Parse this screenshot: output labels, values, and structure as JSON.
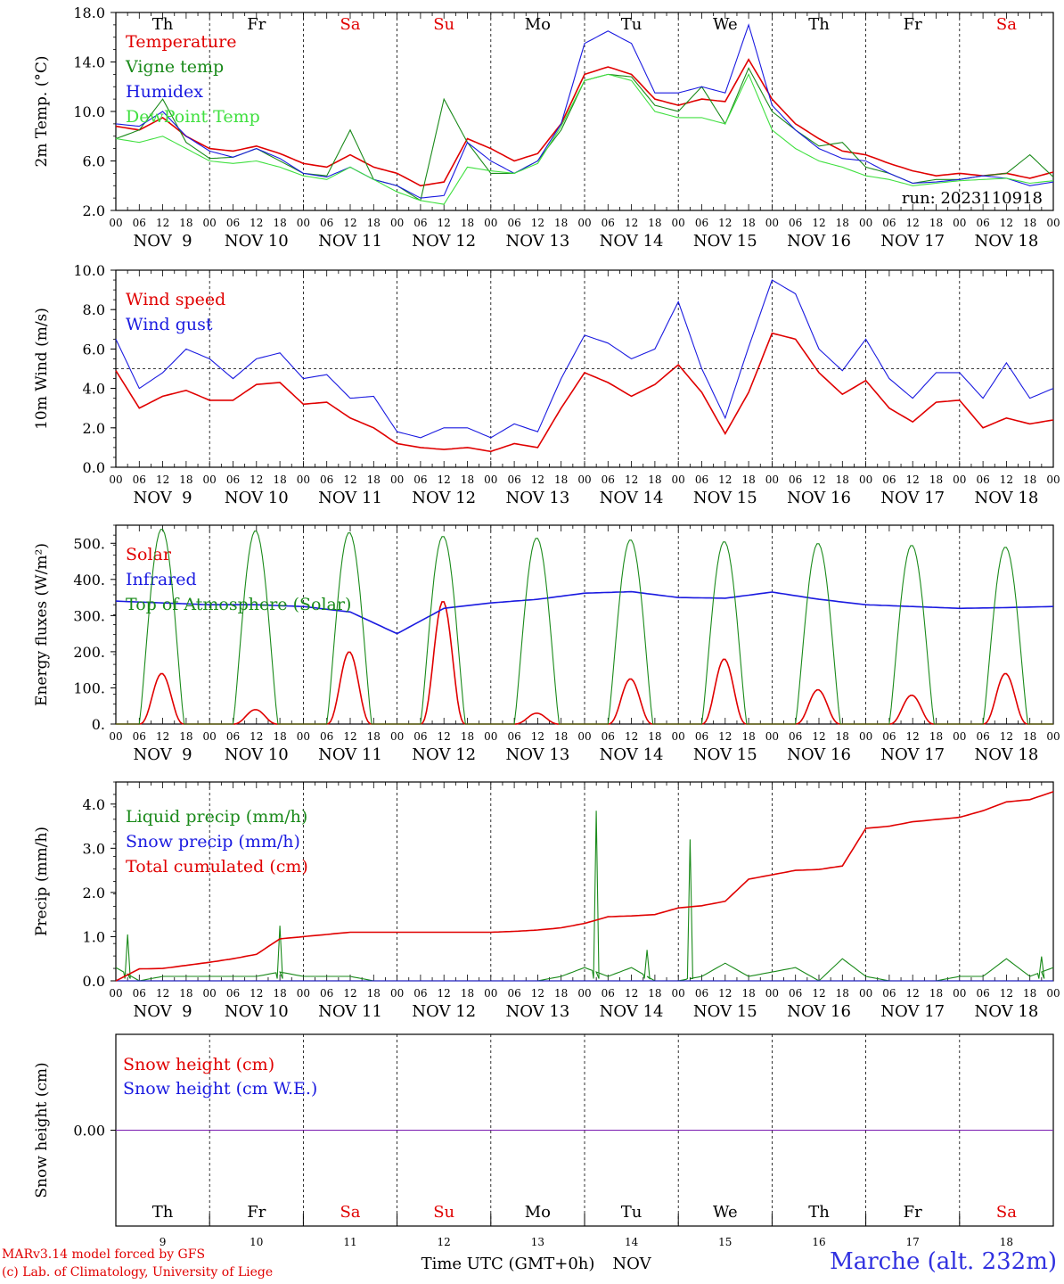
{
  "colors": {
    "red": "#e00000",
    "green": "#1a8a1a",
    "blue": "#1a1ae0",
    "lightgreen": "#40e040",
    "purple": "#7a1ab0",
    "axis": "#000000",
    "day_red": "#e00000"
  },
  "footer": {
    "credit_line1": "MARv3.14 model forced by GFS",
    "credit_line2": "(c) Lab. of Climatology, University of Liege",
    "location": "Marche (alt. 232m)"
  },
  "chart_data": [
    {
      "type": "line",
      "ylabel": "2m Temp. (°C)",
      "ylim": [
        2,
        18
      ],
      "yticks": [
        "2.0",
        "6.0",
        "10.0",
        "14.0",
        "18.0"
      ],
      "day_labels": [
        "Th",
        "Fr",
        "Sa",
        "Su",
        "Mo",
        "Tu",
        "We",
        "Th",
        "Fr",
        "Sa"
      ],
      "date_labels": [
        "NOV  9",
        "NOV 10",
        "NOV 11",
        "NOV 12",
        "NOV 13",
        "NOV 14",
        "NOV 15",
        "NOV 16",
        "NOV 17",
        "NOV 18"
      ],
      "hour_ticks": [
        "00",
        "06",
        "12",
        "18"
      ],
      "annotation": "run: 2023110918",
      "x_hours": [
        0,
        6,
        12,
        18,
        24,
        30,
        36,
        42,
        48,
        54,
        60,
        66,
        72,
        78,
        84,
        90,
        96,
        102,
        108,
        114,
        120,
        126,
        132,
        138,
        144,
        150,
        156,
        162,
        168,
        174,
        180,
        186,
        192,
        198,
        204,
        210,
        216,
        222,
        228,
        234,
        240
      ],
      "series": [
        {
          "name": "Temperature",
          "color": "red",
          "values": [
            8.8,
            8.5,
            9.5,
            8.0,
            7.0,
            6.8,
            7.2,
            6.6,
            5.8,
            5.5,
            6.5,
            5.5,
            5.0,
            4.0,
            4.3,
            7.8,
            7.0,
            6.0,
            6.6,
            9.0,
            13.0,
            13.6,
            13.0,
            11.0,
            10.5,
            11.0,
            10.8,
            14.2,
            11.0,
            9.0,
            7.8,
            6.8,
            6.5,
            5.8,
            5.2,
            4.8,
            5.0,
            4.8,
            5.0,
            4.6,
            5.1
          ]
        },
        {
          "name": "Vigne temp",
          "color": "green",
          "values": [
            7.8,
            8.5,
            11.0,
            7.5,
            6.2,
            6.3,
            7.0,
            6.0,
            5.0,
            4.8,
            8.5,
            4.5,
            4.0,
            2.8,
            11.0,
            7.5,
            5.0,
            5.0,
            6.0,
            8.5,
            12.5,
            13.0,
            12.8,
            10.5,
            10.0,
            12.0,
            9.0,
            13.5,
            10.0,
            8.5,
            7.2,
            7.5,
            5.5,
            5.0,
            4.2,
            4.5,
            4.5,
            4.8,
            5.0,
            6.5,
            4.7
          ]
        },
        {
          "name": "Humidex",
          "color": "blue",
          "values": [
            9.0,
            8.8,
            10.0,
            8.0,
            6.8,
            6.3,
            7.0,
            6.2,
            5.0,
            4.7,
            5.5,
            4.5,
            4.0,
            3.0,
            3.2,
            7.5,
            6.0,
            5.0,
            6.0,
            9.0,
            15.5,
            16.5,
            15.5,
            11.5,
            11.5,
            12.0,
            11.5,
            17.0,
            10.5,
            8.5,
            7.0,
            6.2,
            6.0,
            5.0,
            4.2,
            4.3,
            4.5,
            4.8,
            4.6,
            4.0,
            4.3
          ]
        },
        {
          "name": "DewPoint Temp",
          "color": "lightgreen",
          "values": [
            7.8,
            7.5,
            8.0,
            7.0,
            6.0,
            5.8,
            6.0,
            5.5,
            4.8,
            4.5,
            5.5,
            4.5,
            3.5,
            2.8,
            2.5,
            5.5,
            5.2,
            5.0,
            5.8,
            8.8,
            12.5,
            13.0,
            12.5,
            10.0,
            9.5,
            9.5,
            9.0,
            13.0,
            8.5,
            7.0,
            6.0,
            5.5,
            4.8,
            4.5,
            4.0,
            4.2,
            4.4,
            4.5,
            4.6,
            4.2,
            4.4
          ]
        }
      ]
    },
    {
      "type": "line",
      "ylabel": "10m Wind (m/s)",
      "ylim": [
        0,
        10
      ],
      "yticks": [
        "0.0",
        "2.0",
        "4.0",
        "6.0",
        "8.0",
        "10.0"
      ],
      "reference_line": 5,
      "date_labels": [
        "NOV  9",
        "NOV 10",
        "NOV 11",
        "NOV 12",
        "NOV 13",
        "NOV 14",
        "NOV 15",
        "NOV 16",
        "NOV 17",
        "NOV 18"
      ],
      "hour_ticks": [
        "00",
        "06",
        "12",
        "18"
      ],
      "x_hours": [
        0,
        6,
        12,
        18,
        24,
        30,
        36,
        42,
        48,
        54,
        60,
        66,
        72,
        78,
        84,
        90,
        96,
        102,
        108,
        114,
        120,
        126,
        132,
        138,
        144,
        150,
        156,
        162,
        168,
        174,
        180,
        186,
        192,
        198,
        204,
        210,
        216,
        222,
        228,
        234,
        240
      ],
      "series": [
        {
          "name": "Wind speed",
          "color": "red",
          "values": [
            4.9,
            3.0,
            3.6,
            3.9,
            3.4,
            3.4,
            4.2,
            4.3,
            3.2,
            3.3,
            2.5,
            2.0,
            1.2,
            1.0,
            0.9,
            1.0,
            0.8,
            1.2,
            1.0,
            3.0,
            4.8,
            4.3,
            3.6,
            4.2,
            5.2,
            3.8,
            1.7,
            3.8,
            6.8,
            6.5,
            4.8,
            3.7,
            4.4,
            3.0,
            2.3,
            3.3,
            3.4,
            2.0,
            2.5,
            2.2,
            2.4
          ]
        },
        {
          "name": "Wind gust",
          "color": "blue",
          "values": [
            6.5,
            4.0,
            4.8,
            6.0,
            5.5,
            4.5,
            5.5,
            5.8,
            4.5,
            4.7,
            3.5,
            3.6,
            1.8,
            1.5,
            2.0,
            2.0,
            1.5,
            2.2,
            1.8,
            4.5,
            6.7,
            6.3,
            5.5,
            6.0,
            8.4,
            5.0,
            2.5,
            6.1,
            9.5,
            8.8,
            6.0,
            4.9,
            6.5,
            4.5,
            3.5,
            4.8,
            4.8,
            3.5,
            5.3,
            3.5,
            4.0
          ]
        }
      ]
    },
    {
      "type": "line",
      "ylabel": "Energy fluxes (W/m²)",
      "ylim": [
        0,
        550
      ],
      "yticks": [
        "0.",
        "100.",
        "200.",
        "300.",
        "400.",
        "500."
      ],
      "date_labels": [
        "NOV  9",
        "NOV 10",
        "NOV 11",
        "NOV 12",
        "NOV 13",
        "NOV 14",
        "NOV 15",
        "NOV 16",
        "NOV 17",
        "NOV 18"
      ],
      "hour_ticks": [
        "00",
        "06",
        "12",
        "18"
      ],
      "series": [
        {
          "name": "Solar",
          "color": "red",
          "daily_peaks": [
            140,
            40,
            200,
            340,
            30,
            125,
            180,
            95,
            80,
            140
          ]
        },
        {
          "name": "Infrared",
          "color": "blue",
          "x_hours": [
            0,
            12,
            24,
            36,
            48,
            60,
            72,
            84,
            96,
            108,
            120,
            132,
            144,
            156,
            168,
            180,
            192,
            204,
            216,
            228,
            240
          ],
          "values": [
            340,
            335,
            330,
            330,
            325,
            310,
            250,
            320,
            335,
            345,
            362,
            366,
            350,
            348,
            365,
            345,
            330,
            325,
            320,
            322,
            325
          ]
        },
        {
          "name": "Top of Atmosphere (Solar)",
          "color": "green",
          "daily_peaks": [
            540,
            535,
            530,
            520,
            515,
            510,
            505,
            500,
            495,
            490
          ]
        }
      ]
    },
    {
      "type": "line",
      "ylabel": "Precip (mm/h)",
      "ylim": [
        0,
        4.5
      ],
      "yticks": [
        "0.0",
        "1.0",
        "2.0",
        "3.0",
        "4.0"
      ],
      "date_labels": [
        "NOV  9",
        "NOV 10",
        "NOV 11",
        "NOV 12",
        "NOV 13",
        "NOV 14",
        "NOV 15",
        "NOV 16",
        "NOV 17",
        "NOV 18"
      ],
      "hour_ticks": [
        "00",
        "06",
        "12",
        "18"
      ],
      "x_hours": [
        0,
        6,
        12,
        18,
        24,
        30,
        36,
        42,
        48,
        54,
        60,
        66,
        72,
        78,
        84,
        90,
        96,
        102,
        108,
        114,
        120,
        126,
        132,
        138,
        144,
        150,
        156,
        162,
        168,
        174,
        180,
        186,
        192,
        198,
        204,
        210,
        216,
        222,
        228,
        234,
        240
      ],
      "series": [
        {
          "name": "Liquid precip (mm/h)",
          "color": "green",
          "values": [
            0.3,
            0.0,
            0.1,
            0.1,
            0.1,
            0.1,
            0.1,
            0.2,
            0.1,
            0.1,
            0.1,
            0.0,
            0.0,
            0.0,
            0.0,
            0.0,
            0.0,
            0.0,
            0.0,
            0.1,
            0.3,
            0.1,
            0.3,
            0.0,
            0.0,
            0.1,
            0.4,
            0.1,
            0.2,
            0.3,
            0.0,
            0.5,
            0.1,
            0.0,
            0.0,
            0.0,
            0.1,
            0.1,
            0.5,
            0.1,
            0.3
          ]
        },
        {
          "name": "Snow precip (mm/h)",
          "color": "blue",
          "values": [
            0,
            0,
            0,
            0,
            0,
            0,
            0,
            0,
            0,
            0,
            0,
            0,
            0,
            0,
            0,
            0,
            0,
            0,
            0,
            0,
            0,
            0,
            0,
            0,
            0,
            0,
            0,
            0,
            0,
            0,
            0,
            0,
            0,
            0,
            0,
            0,
            0,
            0,
            0,
            0,
            0
          ]
        },
        {
          "name": "Total cumulated (cm)",
          "color": "red",
          "values": [
            0.0,
            0.27,
            0.28,
            0.35,
            0.42,
            0.5,
            0.6,
            0.95,
            1.0,
            1.05,
            1.1,
            1.1,
            1.1,
            1.1,
            1.1,
            1.1,
            1.1,
            1.12,
            1.15,
            1.2,
            1.3,
            1.45,
            1.47,
            1.5,
            1.65,
            1.7,
            1.8,
            2.3,
            2.4,
            2.5,
            2.52,
            2.6,
            3.45,
            3.5,
            3.6,
            3.65,
            3.7,
            3.85,
            4.05,
            4.1,
            4.28
          ]
        }
      ],
      "spikes": [
        {
          "hour": 3,
          "value": 1.05
        },
        {
          "hour": 42,
          "value": 1.25
        },
        {
          "hour": 123,
          "value": 3.85
        },
        {
          "hour": 136,
          "value": 0.7
        },
        {
          "hour": 147,
          "value": 3.2
        },
        {
          "hour": 237,
          "value": 0.55
        }
      ]
    },
    {
      "type": "line",
      "ylabel": "Snow height (cm)",
      "ylim": [
        -1,
        1
      ],
      "yticks": [
        "0.00"
      ],
      "day_labels": [
        "Th",
        "Fr",
        "Sa",
        "Su",
        "Mo",
        "Tu",
        "We",
        "Th",
        "Fr",
        "Sa"
      ],
      "day_numbers": [
        "9",
        "10",
        "11",
        "12",
        "13",
        "14",
        "15",
        "16",
        "17",
        "18"
      ],
      "xlabel": "Time UTC (GMT+0h)",
      "month_label": "NOV",
      "series": [
        {
          "name": "Snow height (cm)",
          "color": "red",
          "values": [
            0,
            0
          ]
        },
        {
          "name": "Snow height (cm W.E.)",
          "color": "blue",
          "values": [
            0,
            0
          ]
        }
      ]
    }
  ]
}
